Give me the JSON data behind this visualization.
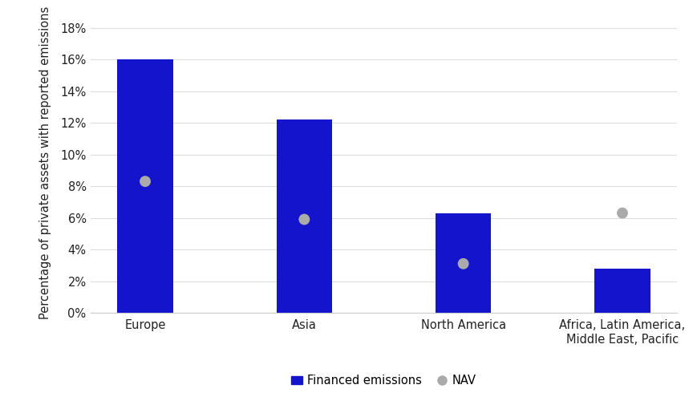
{
  "categories": [
    "Europe",
    "Asia",
    "North America",
    "Africa, Latin America,\nMiddle East, Pacific"
  ],
  "bar_values": [
    0.16,
    0.122,
    0.063,
    0.028
  ],
  "dot_values": [
    0.083,
    0.059,
    0.031,
    0.063
  ],
  "bar_color": "#1414cc",
  "dot_color": "#aaaaaa",
  "ylabel": "Percentage of private assets with reported emissions",
  "ylim": [
    0,
    0.19
  ],
  "yticks": [
    0.0,
    0.02,
    0.04,
    0.06,
    0.08,
    0.1,
    0.12,
    0.14,
    0.16,
    0.18
  ],
  "ytick_labels": [
    "0%",
    "2%",
    "4%",
    "6%",
    "8%",
    "10%",
    "12%",
    "14%",
    "16%",
    "18%"
  ],
  "legend_bar_label": "Financed emissions",
  "legend_dot_label": "NAV",
  "background_color": "#ffffff",
  "bar_width": 0.35,
  "dot_size": 100,
  "figsize": [
    8.7,
    5.0
  ],
  "dpi": 100
}
